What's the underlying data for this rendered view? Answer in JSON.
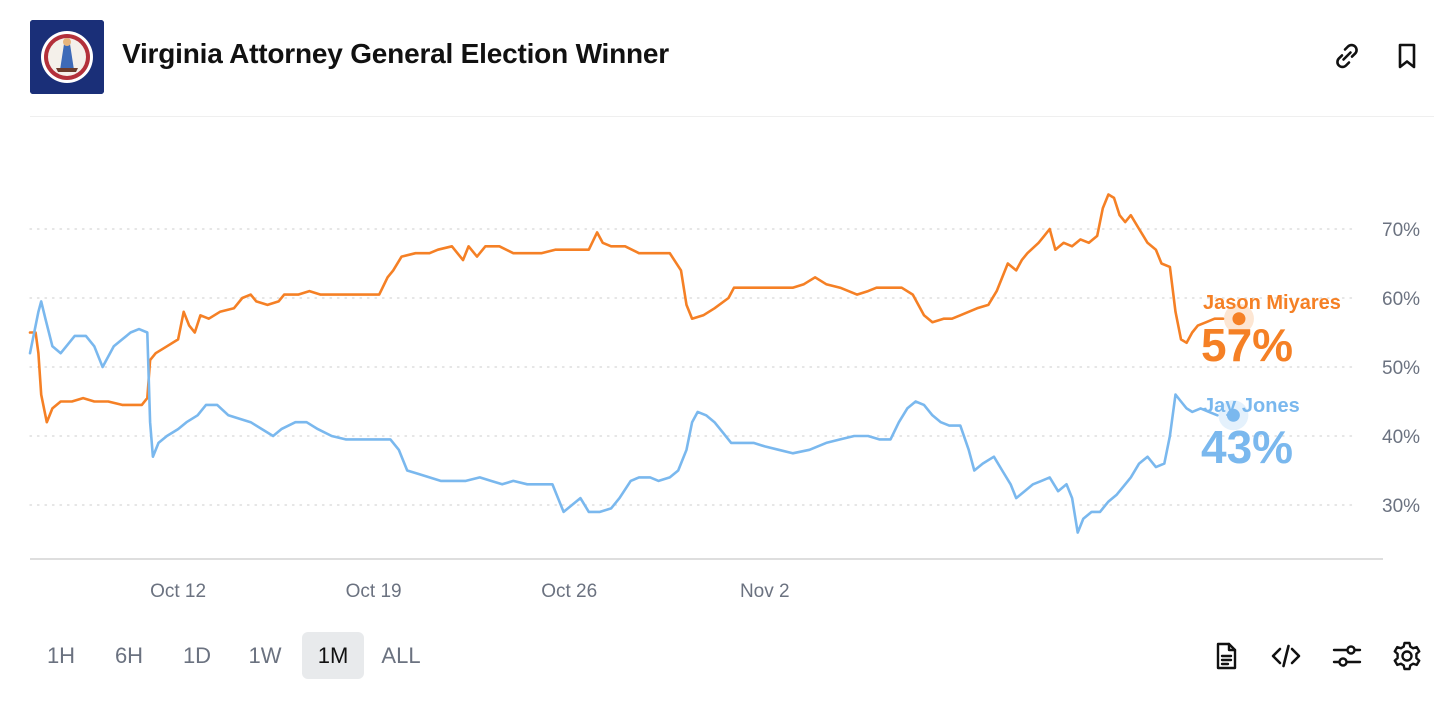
{
  "header": {
    "title": "Virginia Attorney General Election Winner",
    "flag_icon": "virginia-flag-icon",
    "icons": [
      "link-icon",
      "bookmark-icon"
    ]
  },
  "chart_data": {
    "type": "line",
    "ylim": [
      24,
      82
    ],
    "y_ticks": [
      {
        "value": 70,
        "label": "70%"
      },
      {
        "value": 60,
        "label": "60%"
      },
      {
        "value": 50,
        "label": "50%"
      },
      {
        "value": 40,
        "label": "40%"
      },
      {
        "value": 30,
        "label": "30%"
      }
    ],
    "x_ticks": [
      "Oct 12",
      "Oct 19",
      "Oct 26",
      "Nov 2"
    ],
    "x_tick_days": [
      12,
      19,
      26,
      33
    ],
    "xlim_days": [
      6.7,
      40.6
    ],
    "grid": true,
    "series": [
      {
        "name": "Jason Miyares",
        "color": "#f58025",
        "current_label": "57%",
        "points": [
          [
            6.7,
            55
          ],
          [
            6.9,
            55
          ],
          [
            7.0,
            52
          ],
          [
            7.1,
            46
          ],
          [
            7.3,
            42
          ],
          [
            7.5,
            44
          ],
          [
            7.8,
            45
          ],
          [
            8.2,
            45
          ],
          [
            8.6,
            45.5
          ],
          [
            9,
            45
          ],
          [
            9.5,
            45
          ],
          [
            10,
            44.5
          ],
          [
            10.7,
            44.5
          ],
          [
            10.9,
            45.5
          ],
          [
            11.0,
            51
          ],
          [
            11.2,
            52
          ],
          [
            11.6,
            53
          ],
          [
            12,
            54
          ],
          [
            12.2,
            58
          ],
          [
            12.4,
            56
          ],
          [
            12.6,
            55
          ],
          [
            12.8,
            57.5
          ],
          [
            13.1,
            57
          ],
          [
            13.5,
            58
          ],
          [
            14,
            58.5
          ],
          [
            14.3,
            60
          ],
          [
            14.6,
            60.5
          ],
          [
            14.8,
            59.5
          ],
          [
            15.2,
            59
          ],
          [
            15.6,
            59.5
          ],
          [
            15.8,
            60.5
          ],
          [
            16.3,
            60.5
          ],
          [
            16.7,
            61
          ],
          [
            17.1,
            60.5
          ],
          [
            18,
            60.5
          ],
          [
            19.2,
            60.5
          ],
          [
            19.5,
            63
          ],
          [
            19.7,
            64
          ],
          [
            20,
            66
          ],
          [
            20.5,
            66.5
          ],
          [
            21,
            66.5
          ],
          [
            21.3,
            67
          ],
          [
            21.8,
            67.5
          ],
          [
            22.2,
            65.5
          ],
          [
            22.4,
            67.5
          ],
          [
            22.7,
            66
          ],
          [
            23,
            67.5
          ],
          [
            23.5,
            67.5
          ],
          [
            24,
            66.5
          ],
          [
            24.5,
            66.5
          ],
          [
            25,
            66.5
          ],
          [
            25.5,
            67
          ],
          [
            26,
            67
          ],
          [
            26.7,
            67
          ],
          [
            27,
            69.5
          ],
          [
            27.2,
            68
          ],
          [
            27.5,
            67.5
          ],
          [
            28,
            67.5
          ],
          [
            28.5,
            66.5
          ],
          [
            29,
            66.5
          ],
          [
            29.6,
            66.5
          ],
          [
            30.0,
            64
          ],
          [
            30.2,
            59
          ],
          [
            30.4,
            57
          ],
          [
            30.8,
            57.5
          ],
          [
            31.2,
            58.5
          ],
          [
            31.7,
            60
          ],
          [
            31.9,
            61.5
          ],
          [
            32.3,
            61.5
          ],
          [
            33.0,
            61.5
          ],
          [
            33.5,
            61.5
          ],
          [
            34.0,
            61.5
          ],
          [
            34.4,
            62
          ],
          [
            34.8,
            63
          ],
          [
            35.2,
            62
          ],
          [
            35.7,
            61.5
          ],
          [
            36.3,
            60.5
          ],
          [
            36.7,
            61
          ],
          [
            37.0,
            61.5
          ],
          [
            37.5,
            61.5
          ],
          [
            37.9,
            61.5
          ],
          [
            38.3,
            60.5
          ],
          [
            38.7,
            57.5
          ],
          [
            39.0,
            56.5
          ],
          [
            39.4,
            57
          ],
          [
            39.7,
            57
          ],
          [
            40.0,
            57.5
          ],
          [
            40.6,
            58.5
          ],
          [
            41.0,
            59
          ],
          [
            41.3,
            61
          ],
          [
            41.7,
            65
          ],
          [
            42.0,
            64
          ],
          [
            42.2,
            65.5
          ],
          [
            42.4,
            66.5
          ],
          [
            42.8,
            68
          ],
          [
            43.0,
            69
          ],
          [
            43.2,
            70
          ],
          [
            43.4,
            67
          ],
          [
            43.7,
            68
          ],
          [
            44.0,
            67.5
          ],
          [
            44.3,
            68.5
          ],
          [
            44.6,
            68
          ],
          [
            44.9,
            69
          ],
          [
            45.1,
            73
          ],
          [
            45.3,
            75
          ],
          [
            45.5,
            74.5
          ],
          [
            45.7,
            72
          ],
          [
            45.9,
            71
          ],
          [
            46.1,
            72
          ],
          [
            46.4,
            70
          ],
          [
            46.7,
            68
          ],
          [
            47.0,
            67
          ],
          [
            47.2,
            65
          ],
          [
            47.5,
            64.5
          ],
          [
            47.7,
            58
          ],
          [
            47.9,
            54
          ],
          [
            48.1,
            53.5
          ],
          [
            48.3,
            55
          ],
          [
            48.5,
            56
          ],
          [
            48.8,
            56.5
          ],
          [
            49.1,
            57
          ],
          [
            49.4,
            57
          ]
        ]
      },
      {
        "name": "Jay Jones",
        "color": "#7ab8ee",
        "current_label": "43%",
        "points": [
          [
            6.7,
            52
          ],
          [
            6.8,
            54
          ],
          [
            6.9,
            56
          ],
          [
            7.0,
            58
          ],
          [
            7.1,
            59.5
          ],
          [
            7.25,
            57
          ],
          [
            7.5,
            53
          ],
          [
            7.8,
            52
          ],
          [
            8.0,
            53
          ],
          [
            8.3,
            54.5
          ],
          [
            8.7,
            54.5
          ],
          [
            9.0,
            53
          ],
          [
            9.3,
            50
          ],
          [
            9.7,
            53
          ],
          [
            10.0,
            54
          ],
          [
            10.3,
            55
          ],
          [
            10.6,
            55.5
          ],
          [
            10.9,
            55
          ],
          [
            11.0,
            42
          ],
          [
            11.1,
            37
          ],
          [
            11.3,
            39
          ],
          [
            11.6,
            40
          ],
          [
            12,
            41
          ],
          [
            12.3,
            42
          ],
          [
            12.7,
            43
          ],
          [
            13.0,
            44.5
          ],
          [
            13.4,
            44.5
          ],
          [
            13.8,
            43
          ],
          [
            14.2,
            42.5
          ],
          [
            14.6,
            42
          ],
          [
            15.0,
            41
          ],
          [
            15.4,
            40
          ],
          [
            15.7,
            41
          ],
          [
            16.2,
            42
          ],
          [
            16.6,
            42
          ],
          [
            17.0,
            41
          ],
          [
            17.5,
            40
          ],
          [
            18.0,
            39.5
          ],
          [
            18.6,
            39.5
          ],
          [
            19.2,
            39.5
          ],
          [
            19.6,
            39.5
          ],
          [
            19.9,
            38
          ],
          [
            20.2,
            35
          ],
          [
            20.6,
            34.5
          ],
          [
            21.0,
            34
          ],
          [
            21.4,
            33.5
          ],
          [
            21.8,
            33.5
          ],
          [
            22.3,
            33.5
          ],
          [
            22.8,
            34
          ],
          [
            23.2,
            33.5
          ],
          [
            23.6,
            33
          ],
          [
            24.0,
            33.5
          ],
          [
            24.5,
            33
          ],
          [
            25.0,
            33
          ],
          [
            25.4,
            33
          ],
          [
            25.8,
            29
          ],
          [
            26.1,
            30
          ],
          [
            26.4,
            31
          ],
          [
            26.7,
            29
          ],
          [
            27.1,
            29
          ],
          [
            27.5,
            29.5
          ],
          [
            27.8,
            31
          ],
          [
            28.2,
            33.5
          ],
          [
            28.5,
            34
          ],
          [
            28.9,
            34
          ],
          [
            29.2,
            33.5
          ],
          [
            29.6,
            34
          ],
          [
            29.9,
            35
          ],
          [
            30.2,
            38
          ],
          [
            30.4,
            42
          ],
          [
            30.6,
            43.5
          ],
          [
            30.9,
            43
          ],
          [
            31.2,
            42
          ],
          [
            31.5,
            40.5
          ],
          [
            31.8,
            39
          ],
          [
            32.2,
            39
          ],
          [
            32.6,
            39
          ],
          [
            33.0,
            38.5
          ],
          [
            33.5,
            38
          ],
          [
            34.0,
            37.5
          ],
          [
            34.6,
            38
          ],
          [
            35.2,
            39
          ],
          [
            35.7,
            39.5
          ],
          [
            36.2,
            40
          ],
          [
            36.7,
            40
          ],
          [
            37.1,
            39.5
          ],
          [
            37.5,
            39.5
          ],
          [
            37.8,
            42
          ],
          [
            38.1,
            44
          ],
          [
            38.4,
            45
          ],
          [
            38.7,
            44.5
          ],
          [
            39.0,
            43
          ],
          [
            39.3,
            42
          ],
          [
            39.6,
            41.5
          ],
          [
            40.0,
            41.5
          ],
          [
            40.3,
            38
          ],
          [
            40.5,
            35
          ],
          [
            40.8,
            36
          ],
          [
            41.2,
            37
          ],
          [
            41.5,
            35
          ],
          [
            41.8,
            33
          ],
          [
            42.0,
            31
          ],
          [
            42.3,
            32
          ],
          [
            42.6,
            33
          ],
          [
            42.9,
            33.5
          ],
          [
            43.2,
            34
          ],
          [
            43.5,
            32
          ],
          [
            43.8,
            33
          ],
          [
            44.0,
            31
          ],
          [
            44.2,
            26
          ],
          [
            44.4,
            28
          ],
          [
            44.7,
            29
          ],
          [
            45.0,
            29
          ],
          [
            45.3,
            30.5
          ],
          [
            45.6,
            31.5
          ],
          [
            45.9,
            33
          ],
          [
            46.1,
            34
          ],
          [
            46.4,
            36
          ],
          [
            46.7,
            37
          ],
          [
            47.0,
            35.5
          ],
          [
            47.3,
            36
          ],
          [
            47.5,
            40
          ],
          [
            47.7,
            46
          ],
          [
            47.9,
            45
          ],
          [
            48.1,
            44
          ],
          [
            48.3,
            43.5
          ],
          [
            48.6,
            44
          ],
          [
            48.9,
            43.5
          ],
          [
            49.2,
            43
          ]
        ]
      }
    ]
  },
  "controls": {
    "ranges": [
      {
        "label": "1H"
      },
      {
        "label": "6H"
      },
      {
        "label": "1D"
      },
      {
        "label": "1W"
      },
      {
        "label": "1M"
      },
      {
        "label": "ALL"
      }
    ],
    "active_range": "1M",
    "icons": [
      "document-icon",
      "embed-code-icon",
      "sliders-icon",
      "settings-gear-icon"
    ]
  }
}
